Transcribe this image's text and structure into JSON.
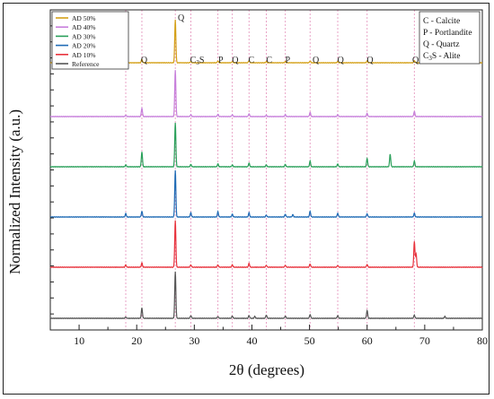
{
  "chart_data": {
    "type": "line",
    "title": "",
    "xlabel": "2θ (degrees)",
    "ylabel": "Normalized Intensity (a.u.)",
    "xlim": [
      5,
      80
    ],
    "xticks": [
      10,
      20,
      30,
      40,
      50,
      60,
      70,
      80
    ],
    "grid": false,
    "legend_position": "top-left",
    "legend_phases_position": "top-right",
    "series": [
      {
        "name": "AD 50%",
        "color": "#d4a017",
        "offset": 5,
        "peaks": [
          [
            18.1,
            0.04
          ],
          [
            20.9,
            0.08
          ],
          [
            26.7,
            1.0
          ],
          [
            29.4,
            0.03
          ],
          [
            34.1,
            0.04
          ],
          [
            36.6,
            0.03
          ],
          [
            39.5,
            0.05
          ],
          [
            42.5,
            0.03
          ],
          [
            45.8,
            0.03
          ],
          [
            50.1,
            0.04
          ],
          [
            54.9,
            0.03
          ],
          [
            60.0,
            0.04
          ],
          [
            68.2,
            0.05
          ]
        ]
      },
      {
        "name": "AD 40%",
        "color": "#c77fdb",
        "offset": 4,
        "peaks": [
          [
            18.1,
            0.03
          ],
          [
            20.9,
            0.18
          ],
          [
            26.7,
            1.0
          ],
          [
            29.4,
            0.04
          ],
          [
            34.1,
            0.05
          ],
          [
            36.6,
            0.04
          ],
          [
            39.5,
            0.06
          ],
          [
            42.5,
            0.03
          ],
          [
            45.8,
            0.04
          ],
          [
            50.1,
            0.09
          ],
          [
            54.9,
            0.04
          ],
          [
            60.0,
            0.07
          ],
          [
            68.2,
            0.11
          ]
        ]
      },
      {
        "name": "AD 30%",
        "color": "#2aa05a",
        "offset": 3,
        "peaks": [
          [
            18.1,
            0.04
          ],
          [
            20.9,
            0.32
          ],
          [
            26.7,
            0.95
          ],
          [
            29.4,
            0.05
          ],
          [
            34.1,
            0.06
          ],
          [
            36.6,
            0.04
          ],
          [
            39.5,
            0.08
          ],
          [
            42.5,
            0.04
          ],
          [
            45.8,
            0.05
          ],
          [
            50.1,
            0.12
          ],
          [
            54.9,
            0.06
          ],
          [
            60.0,
            0.18
          ],
          [
            64.0,
            0.27
          ],
          [
            68.2,
            0.12
          ]
        ]
      },
      {
        "name": "AD 20%",
        "color": "#1f6bb5",
        "offset": 2,
        "peaks": [
          [
            18.1,
            0.07
          ],
          [
            20.9,
            0.12
          ],
          [
            26.7,
            1.0
          ],
          [
            29.4,
            0.09
          ],
          [
            34.1,
            0.11
          ],
          [
            36.6,
            0.06
          ],
          [
            39.5,
            0.09
          ],
          [
            42.5,
            0.04
          ],
          [
            45.8,
            0.06
          ],
          [
            47.1,
            0.05
          ],
          [
            50.1,
            0.12
          ],
          [
            54.9,
            0.08
          ],
          [
            60.0,
            0.07
          ],
          [
            68.2,
            0.08
          ]
        ]
      },
      {
        "name": "AD 10%",
        "color": "#e8323c",
        "offset": 1,
        "peaks": [
          [
            18.1,
            0.05
          ],
          [
            20.9,
            0.09
          ],
          [
            26.7,
            1.0
          ],
          [
            29.4,
            0.05
          ],
          [
            34.1,
            0.05
          ],
          [
            36.6,
            0.05
          ],
          [
            39.5,
            0.08
          ],
          [
            42.5,
            0.04
          ],
          [
            45.8,
            0.04
          ],
          [
            50.1,
            0.07
          ],
          [
            54.9,
            0.04
          ],
          [
            60.0,
            0.06
          ],
          [
            68.2,
            0.55
          ],
          [
            68.5,
            0.28
          ]
        ]
      },
      {
        "name": "Reference",
        "color": "#555555",
        "offset": 0,
        "peaks": [
          [
            18.1,
            0.03
          ],
          [
            20.9,
            0.22
          ],
          [
            26.7,
            1.0
          ],
          [
            29.4,
            0.06
          ],
          [
            34.1,
            0.04
          ],
          [
            36.6,
            0.05
          ],
          [
            39.5,
            0.06
          ],
          [
            40.5,
            0.04
          ],
          [
            42.5,
            0.07
          ],
          [
            45.8,
            0.05
          ],
          [
            50.1,
            0.08
          ],
          [
            54.9,
            0.06
          ],
          [
            60.0,
            0.17
          ],
          [
            68.2,
            0.07
          ],
          [
            73.5,
            0.04
          ]
        ]
      }
    ],
    "reference_lines": [
      18.1,
      20.9,
      26.7,
      29.4,
      34.1,
      36.6,
      39.5,
      42.5,
      45.8,
      50.1,
      54.9,
      60.0,
      68.2
    ],
    "peak_labels": [
      {
        "x": 18.1,
        "label": "P"
      },
      {
        "x": 21.3,
        "label": "Q"
      },
      {
        "x": 27.7,
        "label": "Q"
      },
      {
        "x": 30.5,
        "label": "C3S",
        "base": "C",
        "sub": "3",
        "rest": "S"
      },
      {
        "x": 34.6,
        "label": "P"
      },
      {
        "x": 37.1,
        "label": "Q"
      },
      {
        "x": 39.9,
        "label": "C"
      },
      {
        "x": 43.0,
        "label": "C"
      },
      {
        "x": 46.2,
        "label": "P"
      },
      {
        "x": 51.1,
        "label": "Q"
      },
      {
        "x": 55.4,
        "label": "Q"
      },
      {
        "x": 60.5,
        "label": "Q"
      },
      {
        "x": 68.4,
        "label": "Q"
      }
    ],
    "phase_legend": [
      {
        "text": "C - Calcite"
      },
      {
        "text": "P - Portlandite"
      },
      {
        "text": "Q - Quartz"
      },
      {
        "text": "C3S - Alite",
        "base": "C",
        "sub": "3",
        "rest": "S - Alite"
      }
    ]
  }
}
